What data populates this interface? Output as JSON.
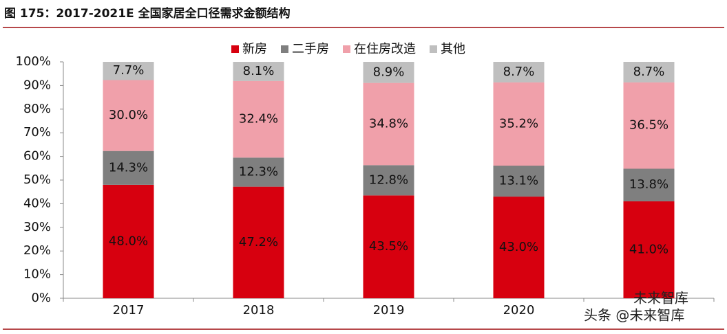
{
  "chart_data": {
    "type": "stacked_bar",
    "title": "图 175：2017-2021E 全国家居全口径需求金额结构",
    "categories": [
      "2017",
      "2018",
      "2019",
      "2020",
      null
    ],
    "series": [
      {
        "name": "新房",
        "color": "#d7000f",
        "values": [
          48.0,
          47.2,
          43.5,
          43.0,
          41.0
        ],
        "value_labels": [
          "48.0%",
          "47.2%",
          "43.5%",
          "43.0%",
          "41.0%"
        ]
      },
      {
        "name": "二手房",
        "color": "#7f7f7f",
        "values": [
          14.3,
          12.3,
          12.8,
          13.1,
          13.8
        ],
        "value_labels": [
          "14.3%",
          "12.3%",
          "12.8%",
          "13.1%",
          "13.8%"
        ]
      },
      {
        "name": "在住房改造",
        "color": "#f0a0aa",
        "values": [
          30.0,
          32.4,
          34.8,
          35.2,
          36.5
        ],
        "value_labels": [
          "30.0%",
          "32.4%",
          "34.8%",
          "35.2%",
          "36.5%"
        ]
      },
      {
        "name": "其他",
        "color": "#bfbfbf",
        "values": [
          7.7,
          8.1,
          8.9,
          8.7,
          8.7
        ],
        "value_labels": [
          "7.7%",
          "8.1%",
          "8.9%",
          "8.7%",
          "8.7%"
        ]
      }
    ],
    "ylim": [
      0,
      100
    ],
    "yticks": [
      {
        "value": 0,
        "label": "0%"
      },
      {
        "value": 10,
        "label": "10%"
      },
      {
        "value": 20,
        "label": "20%"
      },
      {
        "value": 30,
        "label": "30%"
      },
      {
        "value": 40,
        "label": "40%"
      },
      {
        "value": 50,
        "label": "50%"
      },
      {
        "value": 60,
        "label": "60%"
      },
      {
        "value": 70,
        "label": "70%"
      },
      {
        "value": 80,
        "label": "80%"
      },
      {
        "value": 90,
        "label": "90%"
      },
      {
        "value": 100,
        "label": "100%"
      }
    ],
    "grid": false
  },
  "watermark": {
    "line1": "未来智库",
    "line2": "头条 @未来智库"
  }
}
